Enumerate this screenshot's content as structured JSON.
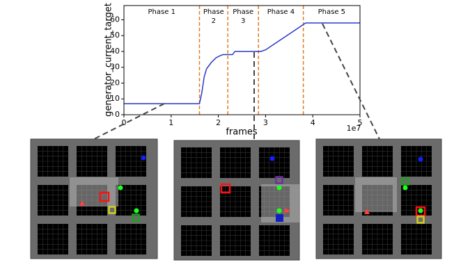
{
  "chart_data": {
    "type": "line",
    "ylabel": "generator_current_target",
    "xlabel": "frames",
    "x_offset_label": "1e7",
    "x": [
      0,
      0.5,
      1.0,
      1.6,
      1.65,
      1.7,
      1.75,
      1.85,
      1.95,
      2.05,
      2.1,
      2.3,
      2.35,
      2.4,
      2.9,
      3.0,
      3.2,
      3.5,
      3.7,
      3.8,
      3.85,
      4.5,
      5.0
    ],
    "y": [
      7,
      7,
      7,
      7,
      14,
      24,
      29,
      33,
      36,
      37.5,
      38,
      38,
      40,
      40,
      40,
      41,
      45,
      51,
      55,
      57,
      58,
      58,
      58
    ],
    "color": "#2838c8",
    "xlim": [
      0,
      5
    ],
    "xticks": [
      0,
      1,
      2,
      3,
      4,
      5
    ],
    "ylim": [
      0,
      69
    ],
    "yticks": [
      0,
      10,
      20,
      30,
      40,
      50,
      60
    ],
    "phase_boundaries": [
      1.6,
      2.2,
      2.85,
      3.8
    ],
    "phase_color": "#e07b20",
    "phase_labels": [
      [
        "Phase 1"
      ],
      [
        "Phase",
        "2"
      ],
      [
        "Phase",
        "3"
      ],
      [
        "Phase 4"
      ],
      [
        "Phase 5"
      ]
    ]
  }
}
